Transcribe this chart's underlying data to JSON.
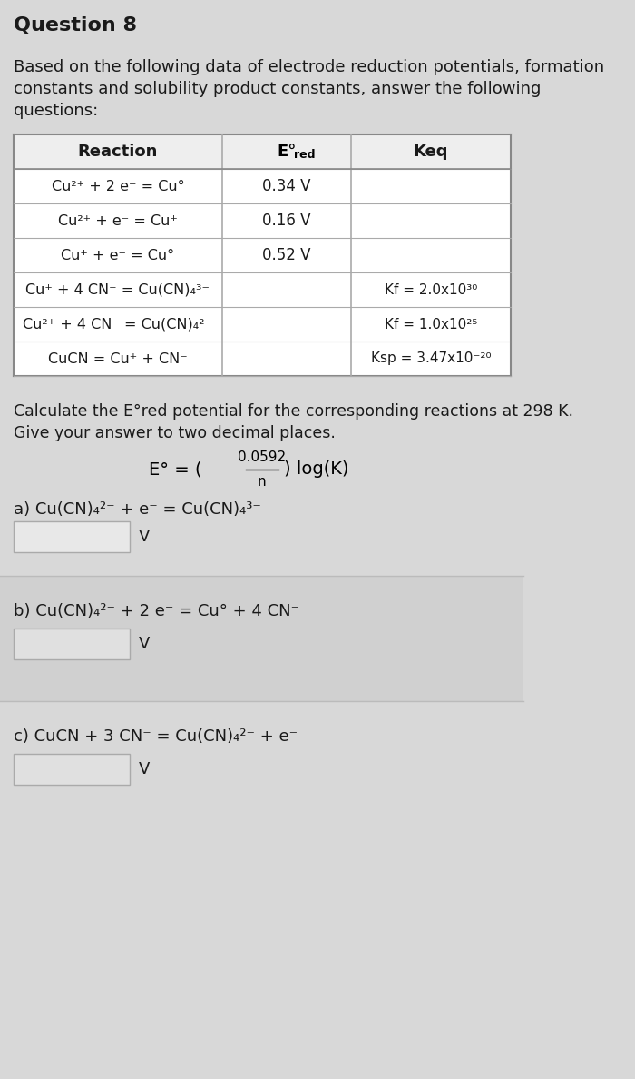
{
  "title": "Question 8",
  "intro_text": "Based on the following data of electrode reduction potentials, formation\nconstants and solubility product constants, answer the following\nquestions:",
  "table_headers": [
    "Reaction",
    "E°red",
    "Keq"
  ],
  "table_rows": [
    [
      "Cu²⁺ + 2 e⁻ = Cu°",
      "0.34 V",
      ""
    ],
    [
      "Cu²⁺ + e⁻ = Cu⁺",
      "0.16 V",
      ""
    ],
    [
      "Cu⁺ + e⁻ = Cu°",
      "0.52 V",
      ""
    ],
    [
      "Cu⁺ + 4 CN⁻ = Cu(CN)₄³⁻",
      "",
      "Kf = 2.0x10³⁰"
    ],
    [
      "Cu²⁺ + 4 CN⁻ = Cu(CN)₄²⁻",
      "",
      "Kf = 1.0x10²⁵"
    ],
    [
      "CuCN = Cu⁺ + CN⁻",
      "",
      "Ksp = 3.47x10⁻²⁰"
    ]
  ],
  "formula_text": "E° = ( 0.0592 / n ) log(K)",
  "calc_text": "Calculate the E°red potential for the corresponding reactions at 298 K.\nGive your answer to two decimal places.",
  "part_a_label": "a) Cu(CN)₄²⁻ + e⁻ = Cu(CN)₄³⁻",
  "part_b_label": "b) Cu(CN)₄²⁻ + 2 e⁻ = Cu° + 4 CN⁻",
  "part_c_label": "c) CuCN + 3 CN⁻ = Cu(CN)₄²⁻ + e⁻",
  "bg_color": "#d8d8d8",
  "table_bg": "#ffffff",
  "table_header_bg": "#e8e8e8",
  "box_color": "#c8c8c8",
  "text_color": "#1a1a1a"
}
